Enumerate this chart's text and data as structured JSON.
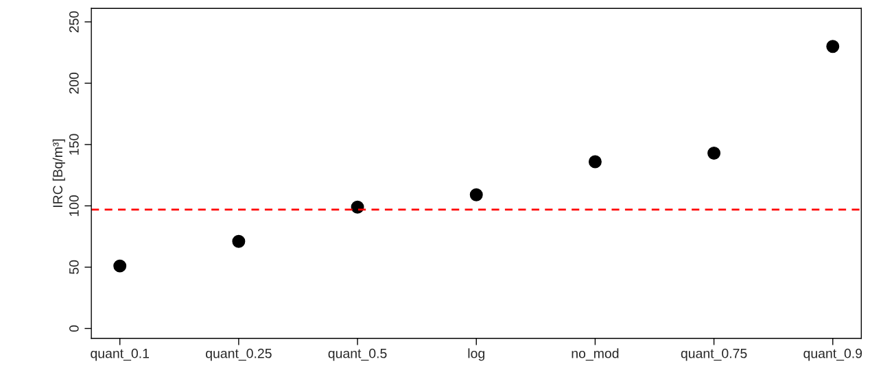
{
  "chart_data": {
    "type": "scatter",
    "ylabel": "IRC [Bq/m³]",
    "categories": [
      "quant_0.1",
      "quant_0.25",
      "quant_0.5",
      "log",
      "no_mod",
      "quant_0.75",
      "quant_0.9"
    ],
    "series": [
      {
        "color": "#000000",
        "values": [
          51,
          71,
          99,
          109,
          136,
          143,
          230
        ]
      }
    ],
    "ylim": [
      -8,
      261
    ],
    "yticks": [
      0,
      50,
      100,
      150,
      200,
      250
    ],
    "ref_lines": [
      {
        "axis": "y",
        "value": 97,
        "color": "#ff0000",
        "line_style": "dashed"
      }
    ],
    "marker": "circle",
    "grid": false,
    "legend": false
  }
}
